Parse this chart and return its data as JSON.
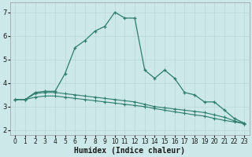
{
  "title": "",
  "xlabel": "Humidex (Indice chaleur)",
  "ylabel": "",
  "bg_color": "#cce8e8",
  "line_color": "#2e7d6e",
  "xlim": [
    -0.5,
    23.5
  ],
  "ylim": [
    1.8,
    7.4
  ],
  "yticks": [
    2,
    3,
    4,
    5,
    6,
    7
  ],
  "xticks": [
    0,
    1,
    2,
    3,
    4,
    5,
    6,
    7,
    8,
    9,
    10,
    11,
    12,
    13,
    14,
    15,
    16,
    17,
    18,
    19,
    20,
    21,
    22,
    23
  ],
  "series1_x": [
    0,
    1,
    2,
    3,
    4,
    5,
    6,
    7,
    8,
    9,
    10,
    11,
    12,
    13,
    14,
    15,
    16,
    17,
    18,
    19,
    20,
    21,
    22,
    23
  ],
  "series1_y": [
    3.3,
    3.3,
    3.6,
    3.65,
    3.65,
    4.4,
    5.5,
    5.8,
    6.2,
    6.4,
    7.0,
    6.75,
    6.75,
    4.55,
    4.2,
    4.55,
    4.2,
    3.6,
    3.5,
    3.2,
    3.2,
    2.85,
    2.5,
    2.3
  ],
  "series2_x": [
    0,
    1,
    2,
    3,
    4,
    5,
    6,
    7,
    8,
    9,
    10,
    11,
    12,
    13,
    14,
    15,
    16,
    17,
    18,
    19,
    20,
    21,
    22,
    23
  ],
  "series2_y": [
    3.3,
    3.3,
    3.55,
    3.6,
    3.6,
    3.55,
    3.5,
    3.45,
    3.4,
    3.35,
    3.3,
    3.25,
    3.2,
    3.1,
    3.0,
    2.95,
    2.9,
    2.85,
    2.8,
    2.75,
    2.65,
    2.55,
    2.4,
    2.28
  ],
  "series3_x": [
    0,
    1,
    2,
    3,
    4,
    5,
    6,
    7,
    8,
    9,
    10,
    11,
    12,
    13,
    14,
    15,
    16,
    17,
    18,
    19,
    20,
    21,
    22,
    23
  ],
  "series3_y": [
    3.3,
    3.3,
    3.4,
    3.45,
    3.45,
    3.4,
    3.35,
    3.3,
    3.25,
    3.2,
    3.15,
    3.1,
    3.05,
    3.0,
    2.92,
    2.85,
    2.78,
    2.72,
    2.65,
    2.6,
    2.5,
    2.42,
    2.35,
    2.28
  ],
  "grid_color": "#b8d8d8",
  "tick_fontsize": 5.5,
  "label_fontsize": 7,
  "figsize": [
    3.2,
    2.0
  ],
  "dpi": 100
}
